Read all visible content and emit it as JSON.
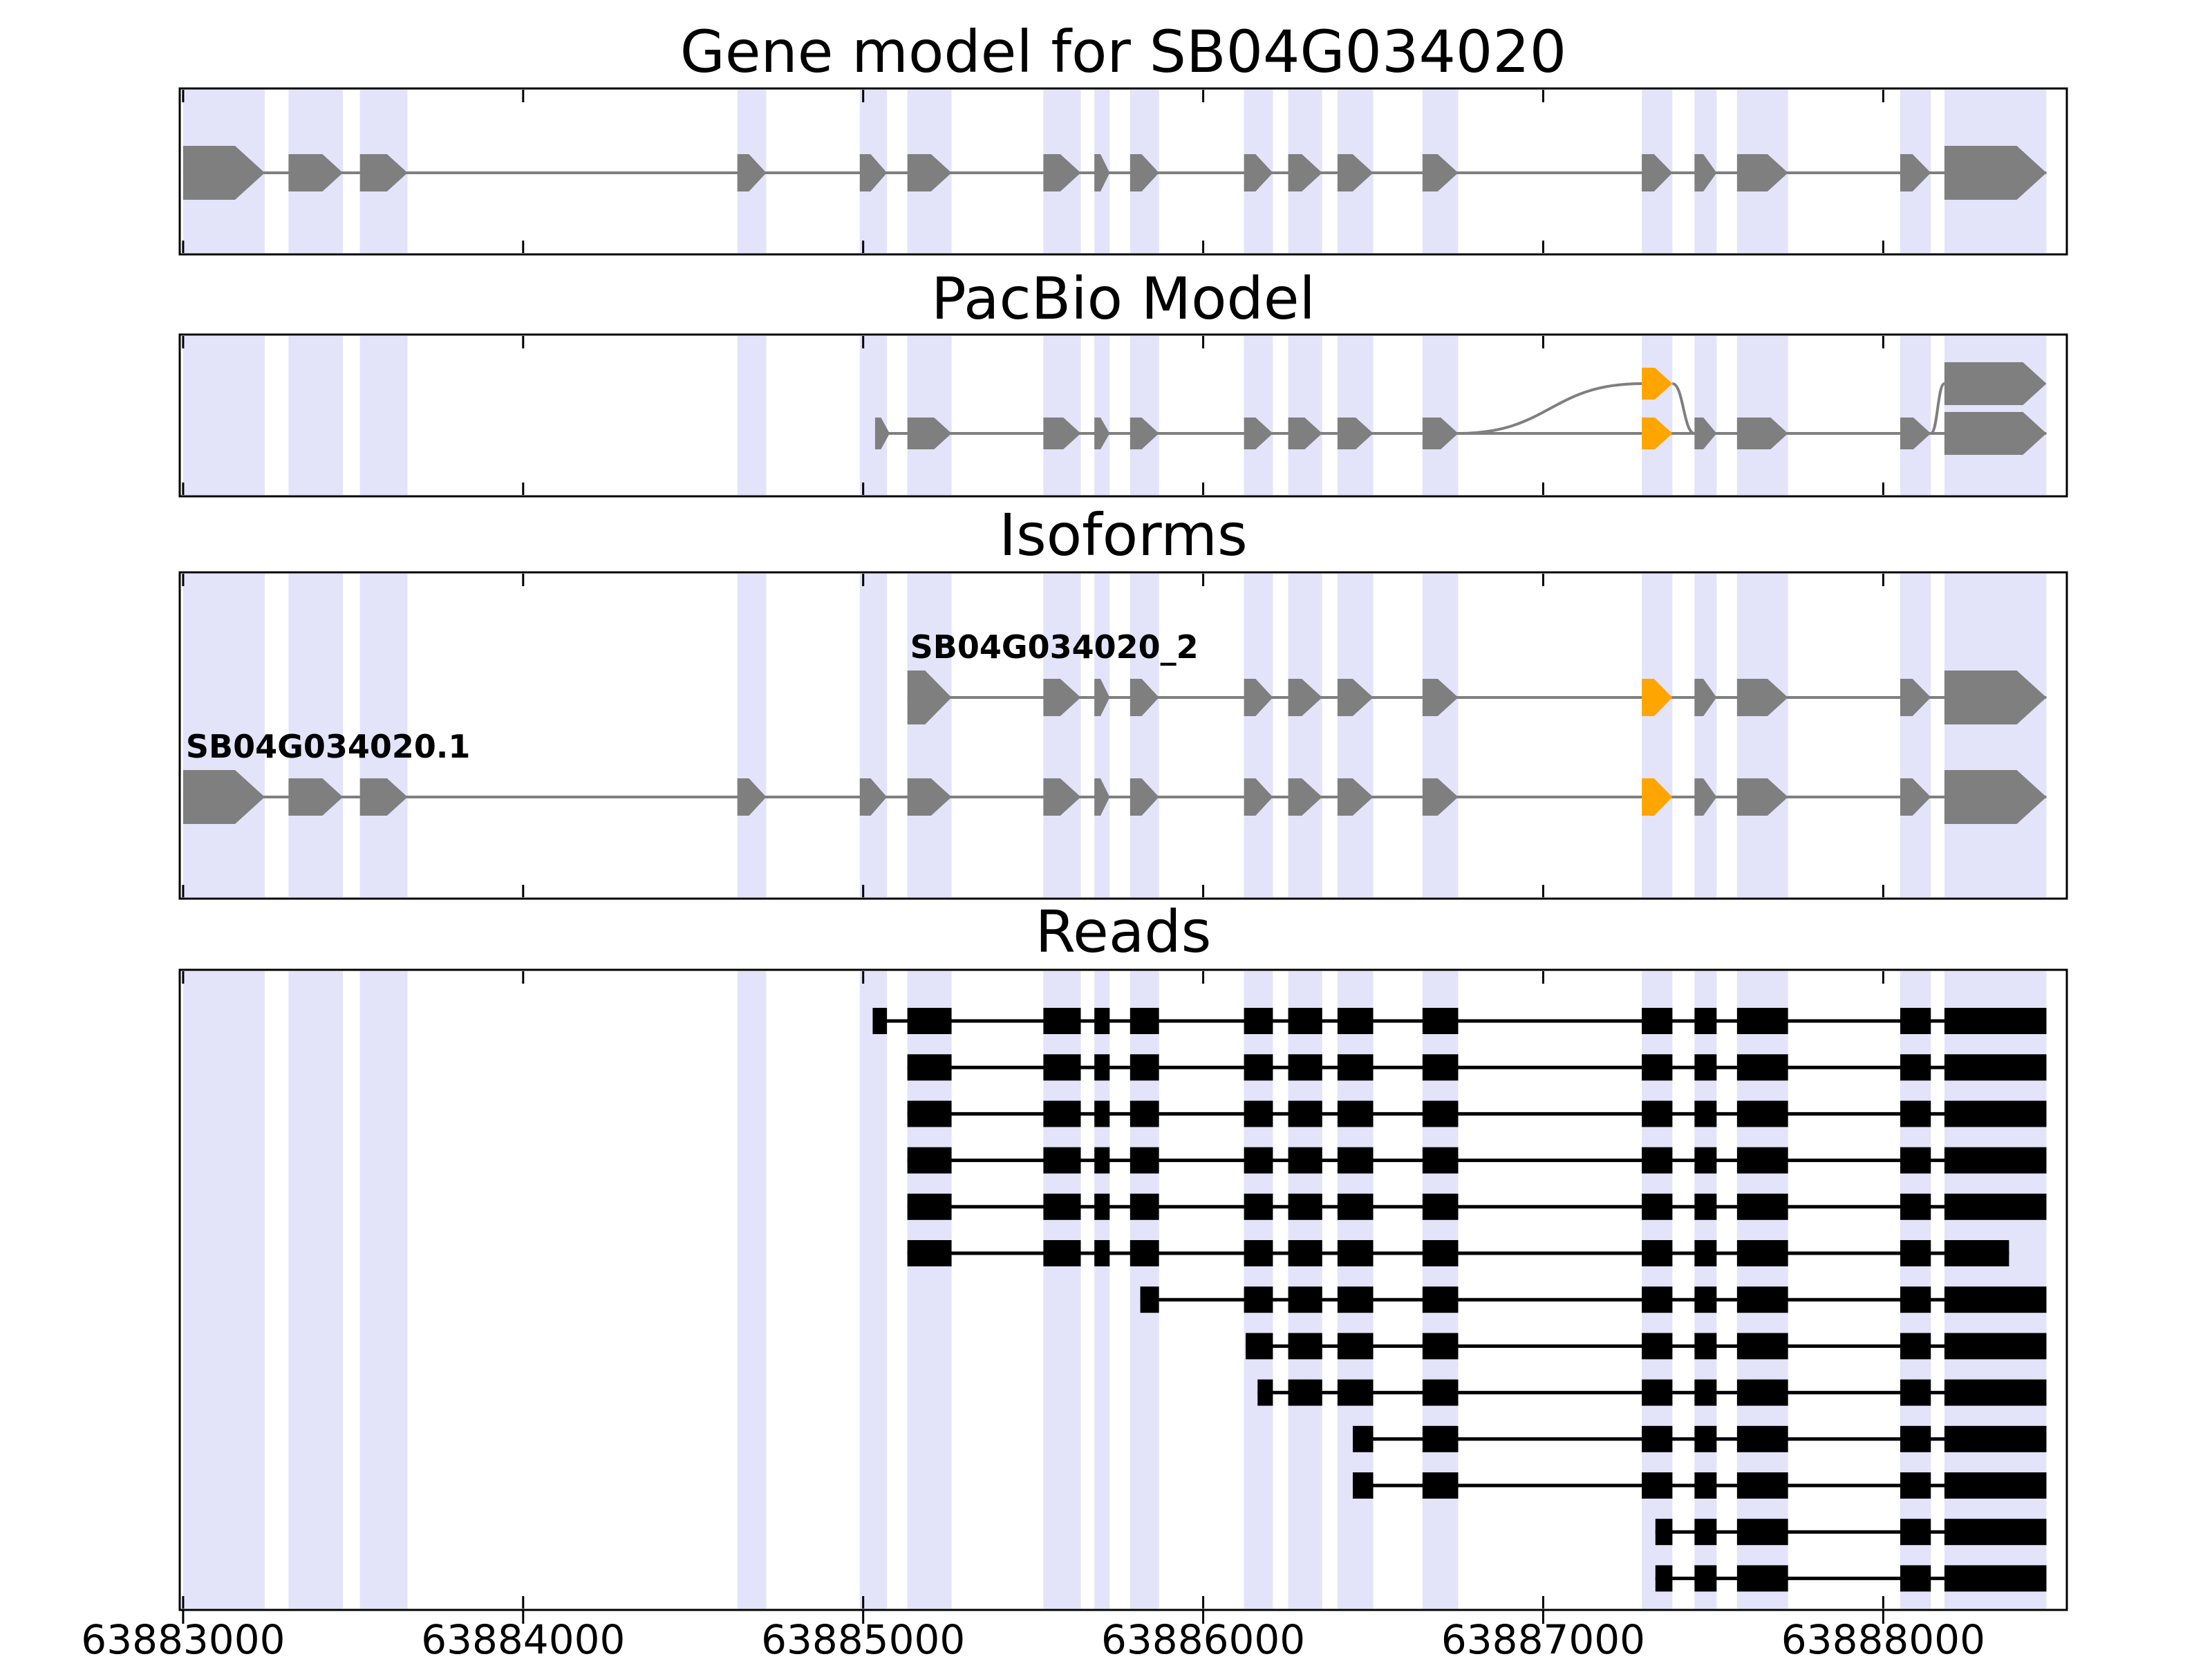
{
  "chart_data": {
    "type": "gene-model-plot",
    "axis": {
      "domain": [
        63882990,
        63888540
      ],
      "ticks": [
        {
          "value": 63883000,
          "label": "63883000"
        },
        {
          "value": 63884000,
          "label": "63884000"
        },
        {
          "value": 63885000,
          "label": "63885000"
        },
        {
          "value": 63886000,
          "label": "63886000"
        },
        {
          "value": 63887000,
          "label": "63887000"
        },
        {
          "value": 63888000,
          "label": "63888000"
        }
      ]
    },
    "colors": {
      "exon": "#7f7f7f",
      "alt_exon": "#FFA500",
      "read": "#000000",
      "connector": "#7f7f7f",
      "highlight": "#ccccf5",
      "frame": "#000000",
      "text": "#000000"
    },
    "highlight_regions": [
      [
        63883000,
        63883240
      ],
      [
        63883310,
        63883470
      ],
      [
        63883520,
        63883660
      ],
      [
        63884630,
        63884715
      ],
      [
        63884990,
        63885070
      ],
      [
        63885130,
        63885260
      ],
      [
        63885530,
        63885640
      ],
      [
        63885680,
        63885725
      ],
      [
        63885785,
        63885870
      ],
      [
        63886120,
        63886205
      ],
      [
        63886250,
        63886350
      ],
      [
        63886395,
        63886500
      ],
      [
        63886645,
        63886750
      ],
      [
        63887290,
        63887380
      ],
      [
        63887445,
        63887510
      ],
      [
        63887570,
        63887720
      ],
      [
        63888050,
        63888140
      ],
      [
        63888180,
        63888480
      ]
    ],
    "panels": [
      {
        "id": "gene-model",
        "title": "Gene model for SB04G034020",
        "transcripts": [
          {
            "label": "",
            "exons": [
              {
                "s": 63883000,
                "e": 63883240,
                "big": true
              },
              {
                "s": 63883310,
                "e": 63883470
              },
              {
                "s": 63883520,
                "e": 63883660
              },
              {
                "s": 63884630,
                "e": 63884715
              },
              {
                "s": 63884990,
                "e": 63885070
              },
              {
                "s": 63885130,
                "e": 63885260
              },
              {
                "s": 63885530,
                "e": 63885640
              },
              {
                "s": 63885680,
                "e": 63885725
              },
              {
                "s": 63885785,
                "e": 63885870
              },
              {
                "s": 63886120,
                "e": 63886205
              },
              {
                "s": 63886250,
                "e": 63886350
              },
              {
                "s": 63886395,
                "e": 63886500
              },
              {
                "s": 63886645,
                "e": 63886750
              },
              {
                "s": 63887290,
                "e": 63887380
              },
              {
                "s": 63887445,
                "e": 63887510
              },
              {
                "s": 63887570,
                "e": 63887720
              },
              {
                "s": 63888050,
                "e": 63888140
              },
              {
                "s": 63888180,
                "e": 63888480,
                "big": true
              }
            ]
          }
        ]
      },
      {
        "id": "pacbio",
        "title": "PacBio Model",
        "lower": {
          "exons": [
            {
              "s": 63885035,
              "e": 63885078
            },
            {
              "s": 63885130,
              "e": 63885260
            },
            {
              "s": 63885530,
              "e": 63885640
            },
            {
              "s": 63885680,
              "e": 63885725
            },
            {
              "s": 63885785,
              "e": 63885870
            },
            {
              "s": 63886120,
              "e": 63886205
            },
            {
              "s": 63886250,
              "e": 63886350
            },
            {
              "s": 63886395,
              "e": 63886500
            },
            {
              "s": 63886645,
              "e": 63886750
            },
            {
              "s": 63887290,
              "e": 63887380,
              "alt": true
            },
            {
              "s": 63887445,
              "e": 63887510
            },
            {
              "s": 63887570,
              "e": 63887720
            },
            {
              "s": 63888050,
              "e": 63888140
            },
            {
              "s": 63888180,
              "e": 63888480,
              "big": true
            }
          ]
        },
        "upper_exons": [
          {
            "s": 63887290,
            "e": 63887380,
            "alt": true
          },
          {
            "s": 63888180,
            "e": 63888480,
            "big": true
          }
        ],
        "connections": [
          {
            "from": 63886750,
            "to": 63887290,
            "dir": "up"
          },
          {
            "from": 63887380,
            "to": 63887445,
            "dir": "down"
          },
          {
            "from": 63888140,
            "to": 63888180,
            "dir": "up"
          }
        ]
      },
      {
        "id": "isoforms",
        "title": "Isoforms",
        "transcripts": [
          {
            "label": "SB04G034020_2",
            "exons": [
              {
                "s": 63885130,
                "e": 63885260,
                "big": true
              },
              {
                "s": 63885530,
                "e": 63885640
              },
              {
                "s": 63885680,
                "e": 63885725
              },
              {
                "s": 63885785,
                "e": 63885870
              },
              {
                "s": 63886120,
                "e": 63886205
              },
              {
                "s": 63886250,
                "e": 63886350
              },
              {
                "s": 63886395,
                "e": 63886500
              },
              {
                "s": 63886645,
                "e": 63886750
              },
              {
                "s": 63887290,
                "e": 63887380,
                "alt": true
              },
              {
                "s": 63887445,
                "e": 63887510
              },
              {
                "s": 63887570,
                "e": 63887720
              },
              {
                "s": 63888050,
                "e": 63888140
              },
              {
                "s": 63888180,
                "e": 63888480,
                "big": true
              }
            ]
          },
          {
            "label": "SB04G034020.1",
            "exons": [
              {
                "s": 63883000,
                "e": 63883240,
                "big": true
              },
              {
                "s": 63883310,
                "e": 63883470
              },
              {
                "s": 63883520,
                "e": 63883660
              },
              {
                "s": 63884630,
                "e": 63884715
              },
              {
                "s": 63884990,
                "e": 63885070
              },
              {
                "s": 63885130,
                "e": 63885260
              },
              {
                "s": 63885530,
                "e": 63885640
              },
              {
                "s": 63885680,
                "e": 63885725
              },
              {
                "s": 63885785,
                "e": 63885870
              },
              {
                "s": 63886120,
                "e": 63886205
              },
              {
                "s": 63886250,
                "e": 63886350
              },
              {
                "s": 63886395,
                "e": 63886500
              },
              {
                "s": 63886645,
                "e": 63886750
              },
              {
                "s": 63887290,
                "e": 63887380,
                "alt": true
              },
              {
                "s": 63887445,
                "e": 63887510
              },
              {
                "s": 63887570,
                "e": 63887720
              },
              {
                "s": 63888050,
                "e": 63888140
              },
              {
                "s": 63888180,
                "e": 63888480,
                "big": true
              }
            ]
          }
        ]
      },
      {
        "id": "reads",
        "title": "Reads",
        "exon_template": [
          [
            63885130,
            63885260
          ],
          [
            63885530,
            63885640
          ],
          [
            63885680,
            63885725
          ],
          [
            63885785,
            63885870
          ],
          [
            63886120,
            63886205
          ],
          [
            63886250,
            63886350
          ],
          [
            63886395,
            63886500
          ],
          [
            63886645,
            63886750
          ],
          [
            63887290,
            63887380
          ],
          [
            63887445,
            63887510
          ],
          [
            63887570,
            63887720
          ],
          [
            63888050,
            63888140
          ],
          [
            63888180,
            63888480
          ]
        ],
        "reads": [
          {
            "start": 63885028,
            "end": 63888480,
            "lead": [
              63885028,
              63885070
            ]
          },
          {
            "start": 63885130,
            "end": 63888480
          },
          {
            "start": 63885130,
            "end": 63888480
          },
          {
            "start": 63885130,
            "end": 63888480
          },
          {
            "start": 63885130,
            "end": 63888480
          },
          {
            "start": 63885130,
            "end": 63888370
          },
          {
            "start": 63885815,
            "end": 63888480
          },
          {
            "start": 63886125,
            "end": 63888480
          },
          {
            "start": 63886160,
            "end": 63888480
          },
          {
            "start": 63886440,
            "end": 63888480
          },
          {
            "start": 63886440,
            "end": 63888480
          },
          {
            "start": 63887330,
            "end": 63888480
          },
          {
            "start": 63887330,
            "end": 63888480
          }
        ]
      }
    ]
  }
}
